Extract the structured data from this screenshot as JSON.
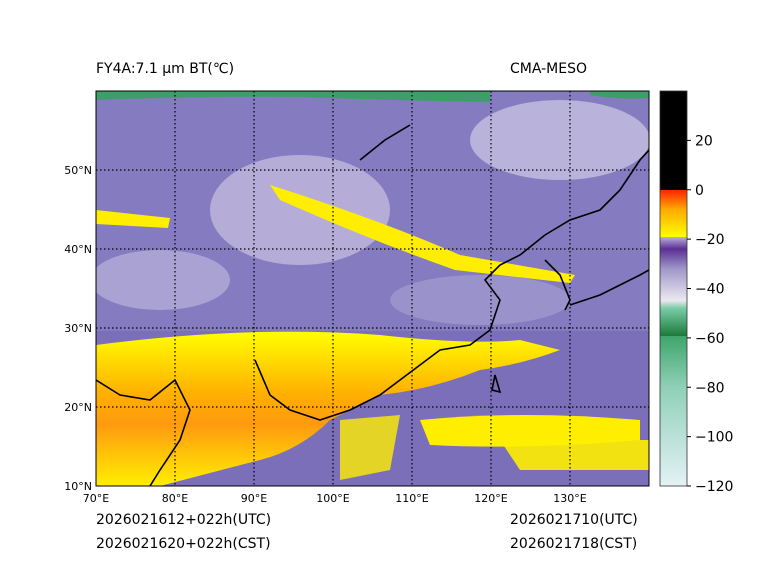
{
  "header": {
    "title": "FY4A:7.1 µm BT(℃)",
    "model": "CMA-MESO"
  },
  "footer": {
    "init_utc": "2026021612+022h(UTC)",
    "init_cst": "2026021620+022h(CST)",
    "valid_utc": "2026021710(UTC)",
    "valid_cst": "2026021718(CST)"
  },
  "map": {
    "lon_range": [
      70,
      140
    ],
    "lat_range": [
      10,
      60
    ],
    "lon_ticks": [
      {
        "v": 70,
        "label": "70°E"
      },
      {
        "v": 80,
        "label": "80°E"
      },
      {
        "v": 90,
        "label": "90°E"
      },
      {
        "v": 100,
        "label": "100°E"
      },
      {
        "v": 110,
        "label": "110°E"
      },
      {
        "v": 120,
        "label": "120°E"
      },
      {
        "v": 130,
        "label": "130°E"
      }
    ],
    "lat_ticks": [
      {
        "v": 10,
        "label": "10°N"
      },
      {
        "v": 20,
        "label": "20°N"
      },
      {
        "v": 30,
        "label": "30°N"
      },
      {
        "v": 40,
        "label": "40°N"
      },
      {
        "v": 50,
        "label": "50°N"
      }
    ]
  },
  "colorbar": {
    "range": [
      -120,
      40
    ],
    "ticks": [
      {
        "v": 20,
        "label": "20"
      },
      {
        "v": 0,
        "label": "0"
      },
      {
        "v": -20,
        "label": "−20"
      },
      {
        "v": -40,
        "label": "−40"
      },
      {
        "v": -60,
        "label": "−60"
      },
      {
        "v": -80,
        "label": "−80"
      },
      {
        "v": -100,
        "label": "−100"
      },
      {
        "v": -120,
        "label": "−120"
      }
    ],
    "colors": {
      "warm_top": "#000000",
      "red": "#ff2200",
      "yellow": "#ffff00",
      "purple": "#5b2f96",
      "white": "#ece8f2",
      "green": "#1f7a3e",
      "light": "#e4f2f6"
    }
  }
}
